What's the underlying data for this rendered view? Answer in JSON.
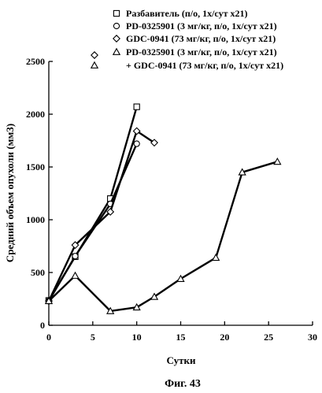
{
  "chart_data": {
    "type": "line",
    "title": "",
    "xlabel": "Сутки",
    "ylabel": "Средний объем опухоли (мм3)",
    "xlim": [
      0,
      30
    ],
    "ylim": [
      0,
      2500
    ],
    "xticks": [
      0,
      5,
      10,
      15,
      20,
      25,
      30
    ],
    "yticks": [
      0,
      500,
      1000,
      1500,
      2000,
      2500
    ],
    "grid": false,
    "legend_position": "top-right",
    "series": [
      {
        "name": "Разбавитель (п/о, 1х/сут x21)",
        "marker": "square",
        "x": [
          0,
          3,
          7,
          10
        ],
        "y": [
          235,
          650,
          1200,
          2070
        ]
      },
      {
        "name": "PD-0325901 (3 мг/кг, п/о, 1х/сут x21)",
        "marker": "circle",
        "x": [
          0,
          3,
          7,
          10
        ],
        "y": [
          230,
          655,
          1150,
          1720
        ]
      },
      {
        "name": "GDC-0941 (73 мг/кг, п/о, 1х/сут x21)",
        "marker": "diamond",
        "x": [
          0,
          3,
          7,
          10,
          12
        ],
        "y": [
          230,
          760,
          1075,
          1840,
          1730
        ]
      },
      {
        "name": "PD-0325901 (3 мг/кг, п/о, 1х/сут x21) + GDC-0941 (73 мг/кг, п/о, 1х/сут x21)",
        "name_lines": [
          "PD-0325901 (3 мг/кг, п/о, 1х/сут x21)",
          "+ GDC-0941 (73 мг/кг, п/о, 1х/сут x21)"
        ],
        "marker": "triangle",
        "x": [
          0,
          3,
          7,
          10,
          12,
          15,
          19,
          22,
          26
        ],
        "y": [
          230,
          470,
          135,
          170,
          270,
          440,
          640,
          1450,
          1550
        ]
      }
    ]
  },
  "caption": "Фиг. 43"
}
